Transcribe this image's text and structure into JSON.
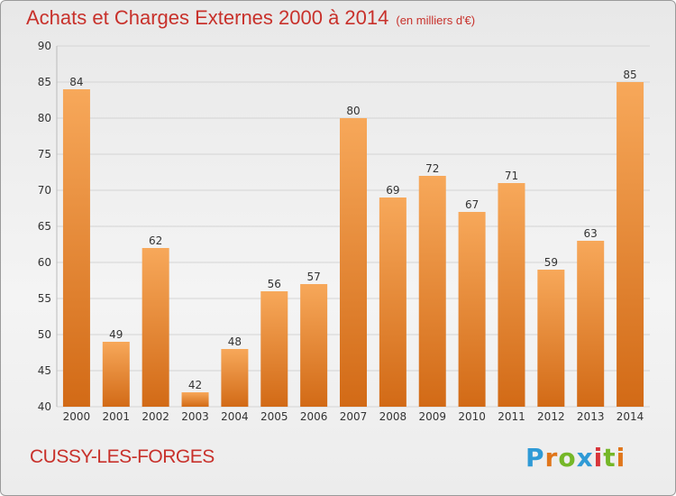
{
  "chart_data": {
    "type": "bar",
    "title": "Achats et Charges Externes 2000 à 2014",
    "unit_label": "(en milliers d'€)",
    "categories": [
      "2000",
      "2001",
      "2002",
      "2003",
      "2004",
      "2005",
      "2006",
      "2007",
      "2008",
      "2009",
      "2010",
      "2011",
      "2012",
      "2013",
      "2014"
    ],
    "values": [
      84,
      49,
      62,
      42,
      48,
      56,
      57,
      80,
      69,
      72,
      67,
      71,
      59,
      63,
      85
    ],
    "ylim": [
      40,
      90
    ],
    "yticks": [
      40,
      45,
      50,
      55,
      60,
      65,
      70,
      75,
      80,
      85,
      90
    ],
    "grid": true,
    "bar_color_top": "#f7a85a",
    "bar_color_bottom": "#d26a16"
  },
  "footer": {
    "town": "CUSSY-LES-FORGES",
    "logo": "Proxiti"
  }
}
